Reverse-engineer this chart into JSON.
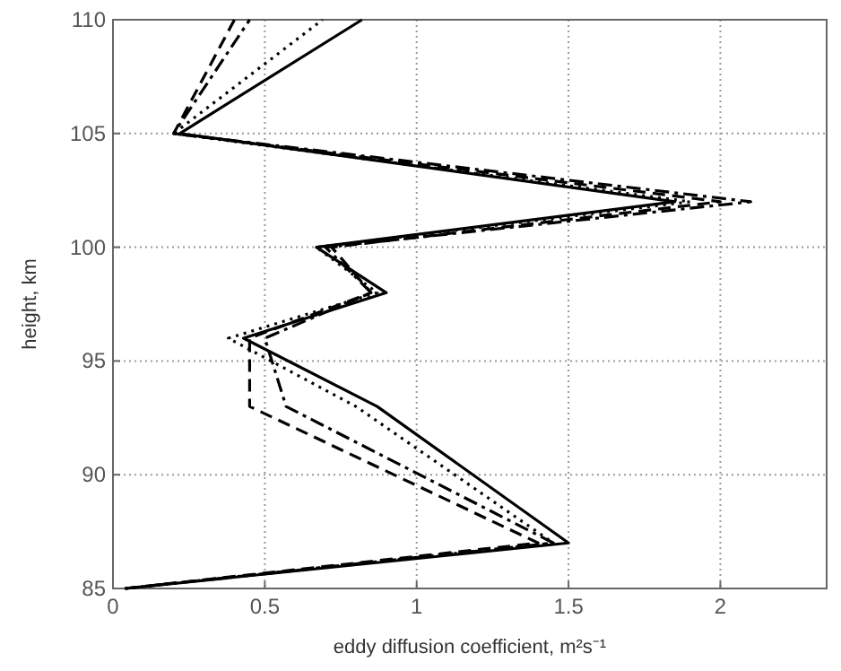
{
  "chart_data": {
    "type": "line",
    "xlabel": "eddy diffusion coefficient, m²s⁻¹",
    "ylabel": "height, km",
    "xlim": [
      0,
      2.35
    ],
    "xticks": [
      0,
      0.5,
      1,
      1.5,
      2
    ],
    "ylim": [
      85,
      110
    ],
    "yticks": [
      85,
      90,
      95,
      100,
      105,
      110
    ],
    "grid": true,
    "marker": "none",
    "series": [
      {
        "color": "#000000",
        "line_style": "solid",
        "x": [
          0.04,
          1.5,
          0.87,
          0.43,
          0.9,
          0.67,
          1.85,
          0.22,
          0.82
        ],
        "values": [
          85,
          87,
          93,
          96,
          98,
          100,
          102,
          105,
          110
        ]
      },
      {
        "color": "#000000",
        "line_style": "dotted",
        "x": [
          0.04,
          1.45,
          0.8,
          0.38,
          0.87,
          0.67,
          1.9,
          0.2,
          0.69
        ],
        "values": [
          85,
          87,
          93,
          96,
          98,
          100,
          102,
          105,
          110
        ]
      },
      {
        "color": "#000000",
        "line_style": "dashdot",
        "x": [
          0.04,
          1.45,
          0.57,
          0.5,
          0.85,
          0.7,
          2.1,
          0.2,
          0.45
        ],
        "values": [
          85,
          87,
          93,
          96,
          98,
          100,
          102,
          105,
          110
        ]
      },
      {
        "color": "#000000",
        "line_style": "dashed",
        "x": [
          0.04,
          1.4,
          0.45,
          0.45,
          0.85,
          0.72,
          2.0,
          0.2,
          0.4
        ],
        "values": [
          85,
          87,
          93,
          96,
          98,
          100,
          102,
          105,
          110
        ]
      }
    ]
  }
}
